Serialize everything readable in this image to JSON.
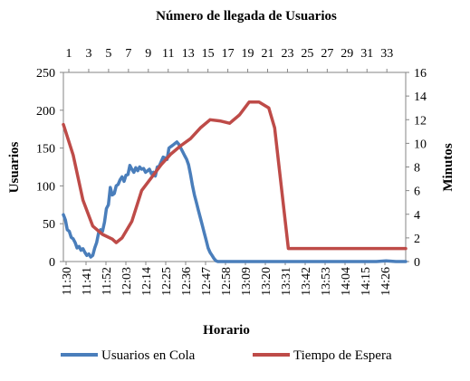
{
  "chart_data": {
    "type": "line",
    "title": "Número de llegada de Usuarios",
    "xlabel": "Horario",
    "ylabel_left": "Usuarios",
    "ylabel_right": "Minutos",
    "ylim_left": [
      0,
      250
    ],
    "ylim_right": [
      0,
      16
    ],
    "yticks_left": [
      "0",
      "50",
      "100",
      "150",
      "200",
      "250"
    ],
    "yticks_right": [
      "0",
      "2",
      "4",
      "6",
      "8",
      "10",
      "12",
      "14",
      "16"
    ],
    "x_categories": [
      "11:30",
      "11:41",
      "11:52",
      "12:03",
      "12:14",
      "12:25",
      "12:36",
      "12:47",
      "12:58",
      "13:09",
      "13:20",
      "13:31",
      "13:42",
      "13:53",
      "14:04",
      "14:15",
      "14:26"
    ],
    "secondary_x_categories": [
      "1",
      "3",
      "5",
      "7",
      "9",
      "11",
      "13",
      "15",
      "17",
      "19",
      "21",
      "23",
      "25",
      "27",
      "29",
      "31",
      "33"
    ],
    "grid": false,
    "legend_position": "bottom",
    "series": [
      {
        "name": "Usuarios en Cola",
        "axis": "left",
        "color": "#4a7ebb",
        "x": [
          0,
          1,
          2,
          3,
          4,
          5,
          6,
          7,
          8,
          9,
          10,
          11,
          12,
          13,
          14,
          15,
          16,
          17,
          18,
          19,
          20,
          21,
          22,
          23,
          24,
          25,
          26,
          27,
          28,
          29,
          30,
          31,
          32,
          33,
          34,
          35,
          36,
          37,
          38,
          39,
          40,
          41,
          42,
          43,
          44,
          45,
          46,
          47,
          48,
          49,
          50,
          51,
          52,
          53,
          54,
          55,
          56,
          57,
          58,
          59,
          60,
          61,
          62,
          63,
          64,
          65,
          66,
          67,
          68,
          69,
          70,
          71,
          72,
          73,
          74,
          75,
          76,
          77,
          78,
          79,
          80,
          81,
          82,
          83,
          84,
          85,
          86,
          87,
          88,
          89,
          90,
          91,
          92,
          93,
          94,
          95,
          96,
          97,
          98,
          99,
          100,
          102,
          104,
          106,
          110,
          115,
          120,
          125,
          130,
          135,
          140,
          145,
          150,
          155,
          160,
          165,
          170,
          175
        ],
        "values": [
          62,
          55,
          42,
          40,
          32,
          30,
          25,
          18,
          20,
          15,
          17,
          12,
          8,
          10,
          6,
          8,
          18,
          25,
          38,
          42,
          40,
          52,
          70,
          75,
          98,
          88,
          90,
          100,
          102,
          108,
          112,
          106,
          114,
          115,
          127,
          122,
          118,
          124,
          120,
          125,
          122,
          123,
          118,
          120,
          122,
          116,
          118,
          113,
          125,
          126,
          132,
          138,
          137,
          135,
          150,
          152,
          154,
          156,
          158,
          155,
          150,
          145,
          140,
          135,
          128,
          115,
          100,
          88,
          78,
          68,
          58,
          48,
          38,
          28,
          18,
          12,
          8,
          4,
          1,
          0,
          0,
          0,
          0,
          0,
          0,
          0,
          0,
          0,
          0,
          0,
          0,
          0,
          0,
          0,
          0,
          0,
          0,
          0,
          0,
          0,
          0,
          0,
          0,
          0,
          0,
          0,
          0,
          0,
          0,
          0,
          0,
          0,
          0,
          0,
          0,
          1,
          0,
          0
        ]
      },
      {
        "name": "Tiempo de Espera",
        "axis": "right",
        "color": "#be4b48",
        "x": [
          0,
          5,
          10,
          15,
          20,
          25,
          27,
          30,
          35,
          40,
          45,
          50,
          55,
          60,
          65,
          70,
          75,
          80,
          85,
          90,
          95,
          100,
          105,
          108,
          115,
          150,
          175
        ],
        "values": [
          11.6,
          9,
          5.2,
          3,
          2.3,
          1.9,
          1.6,
          2,
          3.4,
          6,
          7.1,
          8.2,
          9.1,
          9.8,
          10.4,
          11.3,
          12,
          11.9,
          11.7,
          12.4,
          13.5,
          13.5,
          13,
          11.3,
          1.1,
          1.1,
          1.1
        ]
      }
    ]
  }
}
